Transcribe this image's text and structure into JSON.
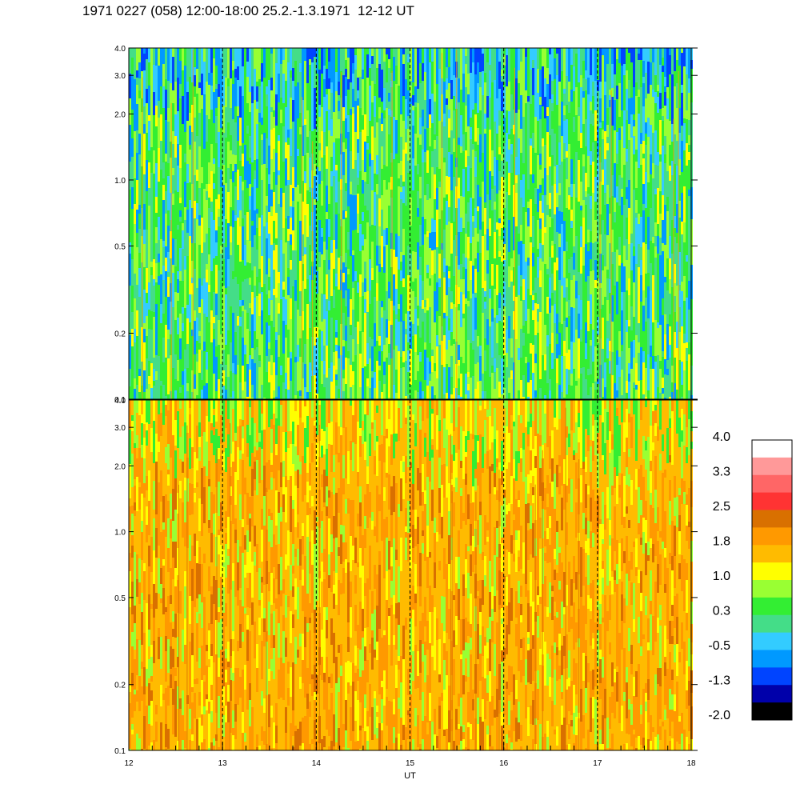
{
  "title": "1971 0227 (058) 12:00-18:00 25.2.-1.3.1971  12-12 UT",
  "chart_data": [
    {
      "type": "heatmap",
      "panel": "top",
      "x_range": [
        12,
        18
      ],
      "x_ticks": [
        "12",
        "13",
        "14",
        "15",
        "16",
        "17",
        "18"
      ],
      "x_dashed_lines": [
        13,
        14,
        15,
        16,
        17
      ],
      "y_scale": "log",
      "y_range": [
        0.1,
        4.0
      ],
      "y_ticks": [
        "0.1",
        "0.2",
        "0.5",
        "1.0",
        "2.0",
        "3.0",
        "4.0"
      ],
      "dominant_levels": [
        "0.3",
        "-0.5",
        "1.0"
      ]
    },
    {
      "type": "heatmap",
      "panel": "bottom",
      "x_range": [
        12,
        18
      ],
      "x_ticks": [
        "12",
        "13",
        "14",
        "15",
        "16",
        "17",
        "18"
      ],
      "x_dashed_lines": [
        13,
        14,
        15,
        16,
        17
      ],
      "xlabel": "UT",
      "y_scale": "log",
      "y_range": [
        0.1,
        4.0
      ],
      "y_ticks": [
        "0.1",
        "0.2",
        "0.5",
        "1.0",
        "2.0",
        "3.0",
        "4.0"
      ],
      "dominant_levels": [
        "1.8",
        "1.0",
        "2.5"
      ]
    }
  ],
  "colorbar": {
    "labels": [
      "4.0",
      "3.3",
      "2.5",
      "1.8",
      "1.0",
      "0.3",
      "-0.5",
      "-1.3",
      "-2.0"
    ],
    "colors_top_to_bottom": [
      "#ffffff",
      "#ff9999",
      "#ff6666",
      "#ff3333",
      "#d97000",
      "#ff9900",
      "#ffbb00",
      "#ffff00",
      "#99ff33",
      "#33ee33",
      "#44dd88",
      "#33ccff",
      "#0099ff",
      "#0044ff",
      "#0000aa",
      "#000000"
    ]
  }
}
